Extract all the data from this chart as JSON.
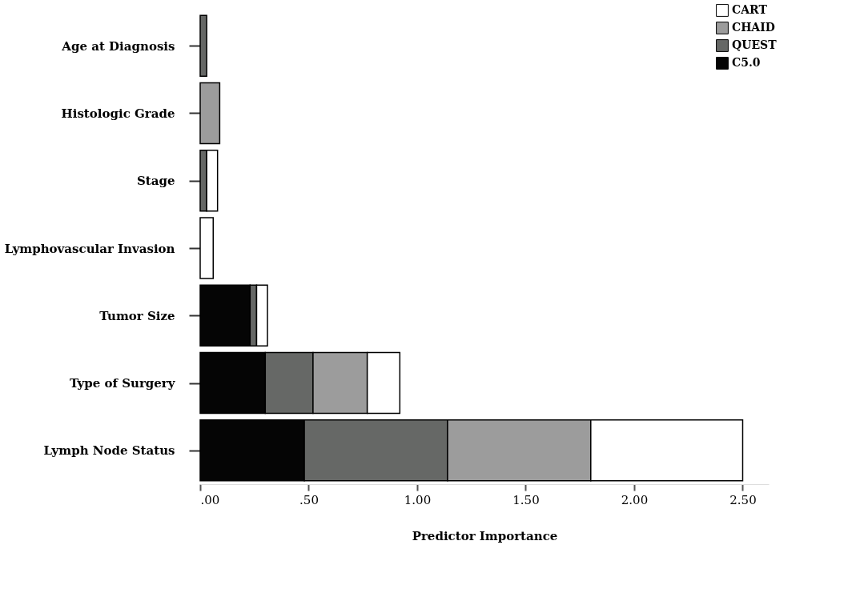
{
  "chart_data": {
    "type": "bar",
    "orientation": "horizontal",
    "stacked": true,
    "xlabel": "Predictor Importance",
    "categories": [
      "Age at Diagnosis",
      "Histologic Grade",
      "Stage",
      "Lymphovascular Invasion",
      "Tumor Size",
      "Type of Surgery",
      "Lymph Node Status"
    ],
    "series": [
      {
        "name": "C5.0",
        "color": "#050505",
        "values": [
          null,
          null,
          null,
          null,
          0.23,
          0.3,
          0.48
        ]
      },
      {
        "name": "QUEST",
        "color": "#666866",
        "values": [
          0.03,
          null,
          0.03,
          null,
          0.03,
          0.22,
          0.66
        ]
      },
      {
        "name": "CHAID",
        "color": "#9c9c9c",
        "values": [
          null,
          0.09,
          null,
          null,
          null,
          0.25,
          0.66
        ]
      },
      {
        "name": "CART",
        "color": "#ffffff",
        "values": [
          null,
          null,
          0.05,
          0.06,
          0.05,
          0.15,
          0.7
        ]
      }
    ],
    "xlim": [
      0,
      2.62
    ],
    "xticks": [
      {
        "value": 0,
        "label": ".00"
      },
      {
        "value": 0.5,
        "label": ".50"
      },
      {
        "value": 1,
        "label": "1.00"
      },
      {
        "value": 1.5,
        "label": "1.50"
      },
      {
        "value": 2,
        "label": "2.00"
      },
      {
        "value": 2.5,
        "label": "2.50"
      }
    ],
    "grid": false,
    "legend": "top right"
  }
}
